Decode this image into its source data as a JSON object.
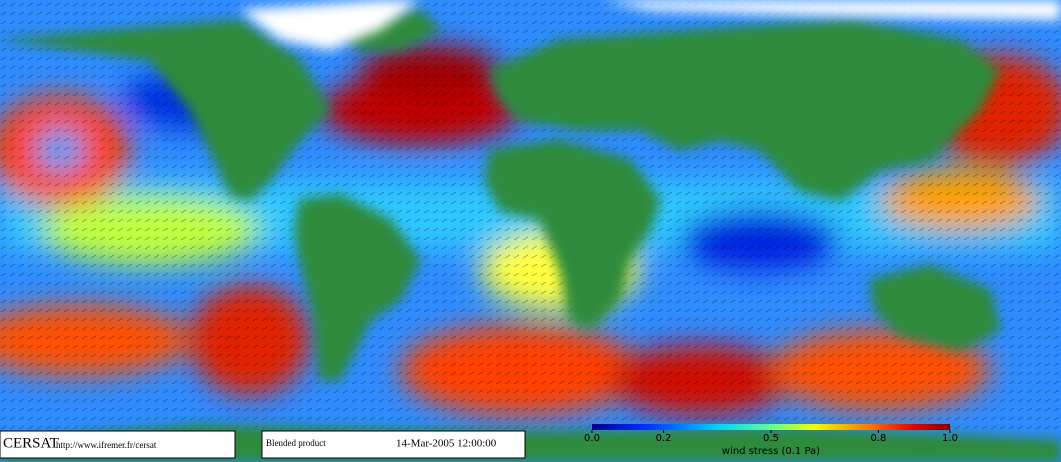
{
  "logo": "CERSAT",
  "url": "http://www.ifremer.fr/cersat",
  "product": "Blended product",
  "date": "14-Mar-2005 12:00:00",
  "colorbar": {
    "label": "wind stress (0.1 Pa)",
    "lim": [
      0,
      1
    ],
    "ticks": [
      {
        "value": 0,
        "label": "0.0"
      },
      0.2,
      0.5,
      0.8,
      {
        "value": 1,
        "label": "1.0"
      }
    ]
  }
}
